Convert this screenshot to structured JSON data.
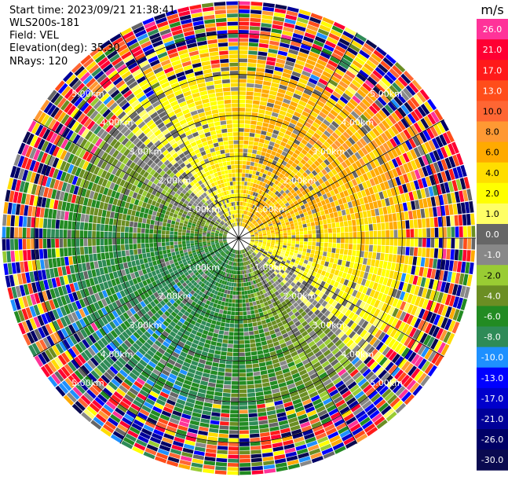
{
  "header": {
    "start_time": "Start time: 2023/09/21 21:38:41",
    "instrument": "WLS200s-181",
    "field": "Field: VEL",
    "elevation": "Elevation(deg): 35.30",
    "nrays": "NRays: 120"
  },
  "colorbar": {
    "unit": "m/s",
    "ticks": [
      "26.0",
      "21.0",
      "17.0",
      "13.0",
      "10.0",
      "8.0",
      "6.0",
      "4.0",
      "2.0",
      "1.0",
      "0.0",
      "-1.0",
      "-2.0",
      "-4.0",
      "-6.0",
      "-8.0",
      "-10.0",
      "-13.0",
      "-17.0",
      "-21.0",
      "-26.0",
      "-30.0"
    ],
    "colors": [
      "#ff3399",
      "#ff0033",
      "#ff1a1a",
      "#ff4d1a",
      "#ff6633",
      "#ff9933",
      "#ffaa00",
      "#ffdd00",
      "#ffff00",
      "#ffff66",
      "#666666",
      "#888888",
      "#99cc33",
      "#6b8e23",
      "#228b22",
      "#2e8b57",
      "#1e90ff",
      "#0000ff",
      "#0000cc",
      "#000099",
      "#000066",
      "#0a0a50"
    ]
  },
  "chart_data": {
    "type": "ppi",
    "field": "VEL",
    "units": "m/s",
    "n_rays": 120,
    "elevation_deg": 35.3,
    "range_rings": [
      {
        "label": "1.00km"
      },
      {
        "label": "2.00km"
      },
      {
        "label": "3.00km"
      },
      {
        "label": "4.00km"
      },
      {
        "label": "5.00km"
      }
    ],
    "max_range_km": 5.8,
    "pattern": {
      "north_east_sector": "positive velocity (2 to 10 m/s)",
      "south_west_sector": "negative velocity (-2 to -8 m/s)",
      "outer_ranges": "noisy, full color range"
    }
  }
}
